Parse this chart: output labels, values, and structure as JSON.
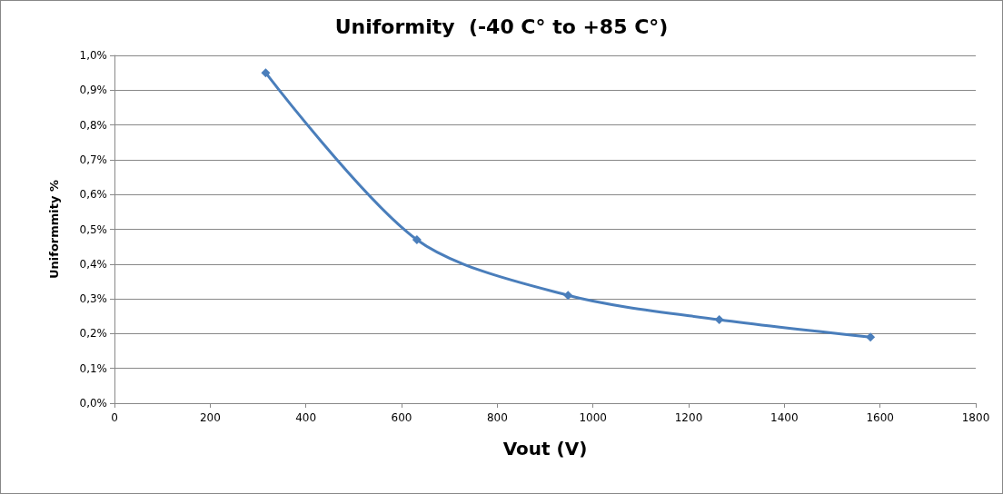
{
  "chart_data": {
    "type": "line",
    "title": "Uniformity  (-40 C° to +85 C°)",
    "xlabel": "Vout (V)",
    "ylabel": "Uniformmity %",
    "x": [
      316,
      632,
      948,
      1264,
      1580
    ],
    "series": [
      {
        "color": "#4a7ebb",
        "values": [
          0.95,
          0.47,
          0.31,
          0.24,
          0.19
        ]
      }
    ],
    "xlim": [
      0,
      1800
    ],
    "xticks": [
      0,
      200,
      400,
      600,
      800,
      1000,
      1200,
      1400,
      1600,
      1800
    ],
    "ylim": [
      0,
      1
    ],
    "yticks": [
      {
        "value": 0,
        "label": "0,0%"
      },
      {
        "value": 0.1,
        "label": "0,1%"
      },
      {
        "value": 0.2,
        "label": "0,2%"
      },
      {
        "value": 0.3,
        "label": "0,3%"
      },
      {
        "value": 0.4,
        "label": "0,4%"
      },
      {
        "value": 0.5,
        "label": "0,5%"
      },
      {
        "value": 0.6,
        "label": "0,6%"
      },
      {
        "value": 0.7,
        "label": "0,7%"
      },
      {
        "value": 0.8,
        "label": "0,8%"
      },
      {
        "value": 0.9,
        "label": "0,9%"
      },
      {
        "value": 1,
        "label": "1,0%"
      }
    ],
    "grid": "y",
    "marker": "diamond",
    "line_style": "solid"
  }
}
